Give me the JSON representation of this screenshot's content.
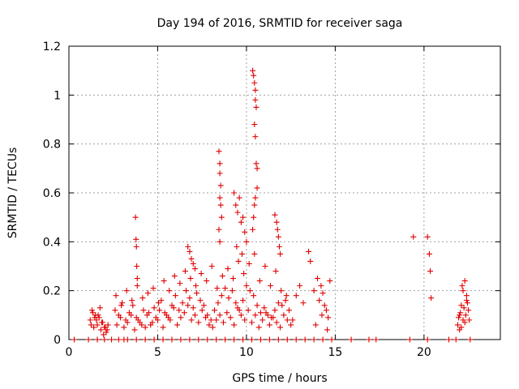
{
  "chart_data": {
    "type": "scatter",
    "title": "Day 194 of 2016, SRMTID for receiver saga",
    "xlabel": "GPS time / hours",
    "ylabel": "SRMTID / TECUs",
    "xlim": [
      0,
      24.3
    ],
    "ylim": [
      0,
      1.2
    ],
    "xticks": [
      0,
      5,
      10,
      15,
      20
    ],
    "xtick_labels": [
      "0",
      "5",
      "10",
      "15",
      "20"
    ],
    "yticks": [
      0,
      0.2,
      0.4,
      0.6,
      0.8,
      1,
      1.2
    ],
    "ytick_labels": [
      "0",
      "0.2",
      "0.4",
      "0.6",
      "0.8",
      "1",
      "1.2"
    ],
    "grid": true,
    "marker": "+",
    "color": "#e00000",
    "series": [
      {
        "name": "SRMTID",
        "x": [
          0.3,
          1.1,
          1.6,
          2.0,
          2.4,
          2.8,
          3.1,
          3.3,
          3.8,
          4.3,
          4.8,
          5.3,
          5.8,
          6.3,
          6.8,
          7.3,
          7.8,
          8.3,
          8.8,
          9.3,
          9.8,
          10.3,
          10.8,
          11.3,
          11.8,
          12.3,
          12.8,
          13.3,
          13.8,
          14.3,
          14.8,
          15.9,
          16.9,
          17.3,
          19.2,
          20.2,
          21.4,
          21.8,
          22.6,
          1.2,
          1.3,
          1.4,
          1.5,
          1.6,
          1.7,
          1.8,
          1.9,
          2.0,
          2.1,
          2.2,
          1.35,
          1.55,
          1.75,
          1.95,
          2.15,
          1.25,
          1.45,
          1.65,
          1.85,
          2.05,
          2.6,
          2.8,
          3.0,
          3.2,
          3.4,
          3.6,
          3.8,
          4.0,
          4.2,
          4.4,
          4.6,
          4.8,
          5.0,
          5.2,
          5.4,
          5.6,
          5.8,
          6.0,
          6.2,
          6.4,
          6.6,
          6.8,
          7.0,
          7.2,
          7.4,
          7.6,
          7.8,
          8.0,
          8.2,
          8.4,
          8.6,
          8.8,
          9.0,
          9.2,
          9.4,
          9.6,
          9.8,
          10.0,
          10.2,
          10.4,
          10.6,
          10.8,
          11.0,
          11.2,
          11.4,
          11.6,
          11.8,
          12.0,
          12.2,
          12.4,
          12.6,
          2.7,
          2.9,
          3.1,
          3.3,
          3.5,
          3.7,
          3.9,
          4.1,
          4.3,
          4.5,
          4.7,
          4.9,
          5.1,
          5.3,
          5.5,
          5.7,
          5.9,
          6.1,
          6.3,
          6.5,
          6.7,
          6.9,
          7.1,
          7.3,
          7.5,
          7.7,
          7.9,
          8.1,
          8.3,
          8.5,
          8.7,
          8.9,
          9.1,
          9.3,
          9.5,
          9.7,
          9.9,
          10.1,
          10.3,
          10.5,
          10.7,
          10.9,
          11.1,
          11.3,
          11.5,
          11.7,
          11.9,
          12.1,
          12.3,
          12.5,
          2.65,
          2.95,
          3.25,
          3.55,
          3.85,
          4.15,
          4.45,
          4.75,
          5.05,
          5.35,
          5.65,
          5.95,
          6.25,
          6.55,
          6.85,
          7.15,
          7.45,
          7.75,
          8.05,
          8.35,
          8.65,
          8.95,
          9.25,
          9.55,
          9.85,
          10.15,
          10.45,
          10.75,
          11.05,
          11.35,
          11.65,
          11.95,
          12.25,
          3.75,
          3.78,
          3.8,
          3.82,
          3.85,
          6.7,
          6.8,
          6.9,
          7.0,
          7.1,
          8.45,
          8.5,
          8.5,
          8.55,
          8.5,
          8.55,
          8.6,
          8.45,
          8.5,
          9.3,
          9.4,
          9.5,
          9.6,
          9.7,
          9.8,
          9.9,
          10.0,
          9.45,
          9.75,
          10.35,
          10.4,
          10.45,
          10.5,
          10.5,
          10.55,
          10.45,
          10.5,
          10.55,
          10.6,
          10.6,
          10.5,
          10.45,
          10.4,
          10.35,
          11.6,
          11.7,
          11.75,
          11.8,
          11.85,
          11.9,
          12.8,
          13.0,
          13.2,
          13.5,
          13.6,
          13.8,
          14.0,
          14.1,
          14.2,
          14.3,
          14.4,
          14.5,
          14.6,
          14.7,
          13.9,
          14.25,
          14.55,
          19.4,
          20.2,
          20.3,
          20.35,
          20.4,
          21.9,
          22.0,
          22.1,
          22.2,
          22.3,
          22.4,
          22.5,
          22.0,
          22.2,
          22.4,
          22.15,
          22.35,
          22.1,
          22.3,
          22.25,
          21.95,
          22.45,
          22.05,
          22.55
        ],
        "y": [
          0,
          0,
          0,
          0,
          0,
          0,
          0,
          0,
          0,
          0,
          0,
          0,
          0,
          0,
          0,
          0,
          0,
          0,
          0,
          0,
          0,
          0,
          0,
          0,
          0,
          0,
          0,
          0,
          0,
          0,
          0,
          0,
          0,
          0,
          0,
          0,
          0,
          0,
          0,
          0.08,
          0.12,
          0.05,
          0.1,
          0.06,
          0.09,
          0.04,
          0.07,
          0.05,
          0.03,
          0.06,
          0.11,
          0.08,
          0.13,
          0.02,
          0.04,
          0.06,
          0.09,
          0.1,
          0.07,
          0.05,
          0.12,
          0.1,
          0.15,
          0.08,
          0.11,
          0.14,
          0.09,
          0.07,
          0.12,
          0.1,
          0.06,
          0.13,
          0.08,
          0.16,
          0.11,
          0.09,
          0.14,
          0.18,
          0.12,
          0.15,
          0.2,
          0.17,
          0.13,
          0.19,
          0.16,
          0.14,
          0.1,
          0.08,
          0.12,
          0.15,
          0.18,
          0.21,
          0.17,
          0.2,
          0.15,
          0.12,
          0.16,
          0.22,
          0.2,
          0.18,
          0.14,
          0.11,
          0.13,
          0.1,
          0.09,
          0.12,
          0.15,
          0.14,
          0.16,
          0.12,
          0.08,
          0.06,
          0.09,
          0.05,
          0.07,
          0.1,
          0.04,
          0.08,
          0.06,
          0.05,
          0.11,
          0.07,
          0.09,
          0.12,
          0.05,
          0.1,
          0.08,
          0.13,
          0.06,
          0.09,
          0.11,
          0.14,
          0.08,
          0.1,
          0.07,
          0.12,
          0.09,
          0.06,
          0.05,
          0.08,
          0.1,
          0.07,
          0.11,
          0.09,
          0.06,
          0.13,
          0.1,
          0.08,
          0.12,
          0.07,
          0.1,
          0.05,
          0.08,
          0.11,
          0.06,
          0.09,
          0.07,
          0.05,
          0.1,
          0.08,
          0.06,
          0.18,
          0.14,
          0.2,
          0.16,
          0.22,
          0.17,
          0.19,
          0.21,
          0.15,
          0.24,
          0.2,
          0.26,
          0.23,
          0.28,
          0.25,
          0.22,
          0.27,
          0.24,
          0.3,
          0.21,
          0.26,
          0.29,
          0.25,
          0.32,
          0.27,
          0.31,
          0.35,
          0.24,
          0.3,
          0.22,
          0.28,
          0.2,
          0.18,
          0.5,
          0.41,
          0.38,
          0.3,
          0.25,
          0.38,
          0.36,
          0.33,
          0.31,
          0.29,
          0.77,
          0.72,
          0.68,
          0.63,
          0.58,
          0.55,
          0.5,
          0.45,
          0.4,
          0.6,
          0.55,
          0.52,
          0.58,
          0.48,
          0.5,
          0.44,
          0.4,
          0.38,
          0.35,
          1.1,
          1.08,
          1.05,
          1.02,
          0.98,
          0.95,
          0.88,
          0.83,
          0.72,
          0.7,
          0.62,
          0.58,
          0.55,
          0.5,
          0.45,
          0.51,
          0.48,
          0.45,
          0.42,
          0.38,
          0.35,
          0.18,
          0.22,
          0.15,
          0.36,
          0.32,
          0.2,
          0.25,
          0.16,
          0.22,
          0.19,
          0.14,
          0.12,
          0.09,
          0.24,
          0.06,
          0.1,
          0.04,
          0.42,
          0.42,
          0.35,
          0.28,
          0.17,
          0.06,
          0.1,
          0.14,
          0.2,
          0.24,
          0.18,
          0.12,
          0.04,
          0.08,
          0.16,
          0.22,
          0.1,
          0.05,
          0.07,
          0.13,
          0.09,
          0.15,
          0.11,
          0.08
        ]
      }
    ]
  }
}
